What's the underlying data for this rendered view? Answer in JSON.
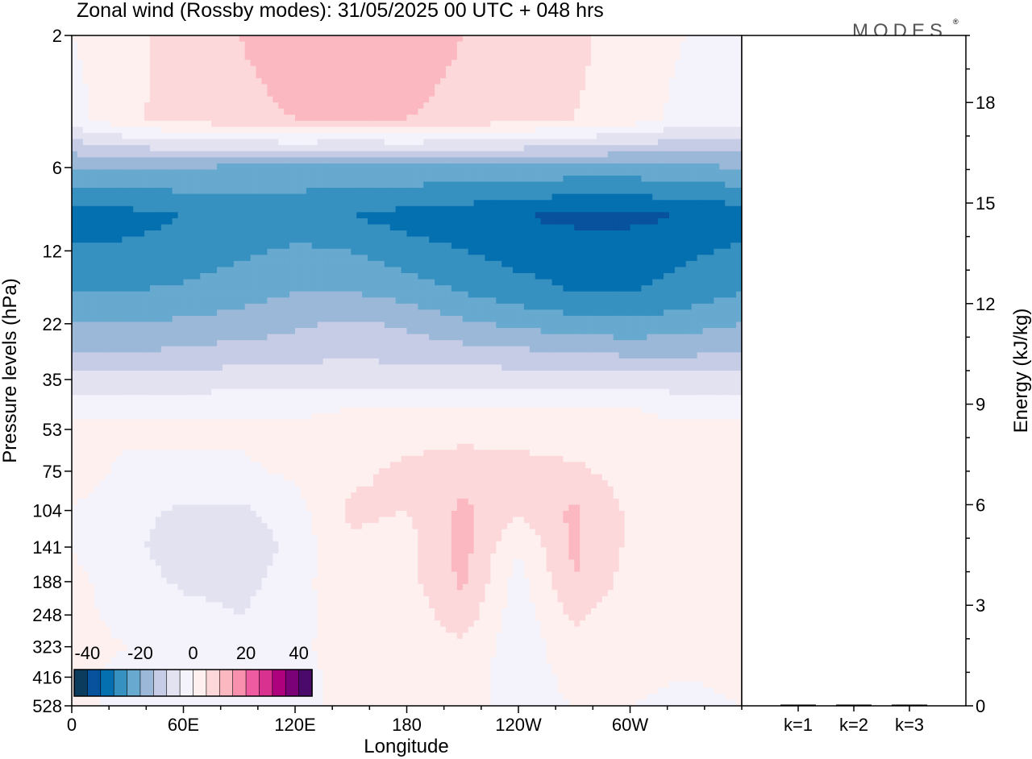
{
  "title": "Zonal wind (Rossby modes):  31/05/2025  00 UTC  + 048 hrs",
  "logo": "MODES",
  "logo_mark": "®",
  "chart_data": [
    {
      "type": "heatmap",
      "title": "Zonal wind (Rossby modes):  31/05/2025  00 UTC  + 048 hrs",
      "xlabel": "Longitude",
      "ylabel": "Pressure levels (hPa)",
      "x_ticks": [
        "0",
        "60E",
        "120E",
        "180",
        "120W",
        "60W"
      ],
      "x_tick_degrees": [
        0,
        60,
        120,
        180,
        240,
        300
      ],
      "x_range_degrees": [
        0,
        360
      ],
      "y_scale": "log",
      "y_ticks": [
        2,
        6,
        12,
        22,
        35,
        53,
        75,
        104,
        141,
        188,
        248,
        323,
        416,
        528
      ],
      "y_range": [
        2,
        528
      ],
      "colorbar": {
        "labels": [
          "-40",
          "-20",
          "0",
          "20",
          "40"
        ],
        "label_values": [
          -40,
          -20,
          0,
          20,
          40
        ],
        "range": [
          -45,
          45
        ],
        "step": 5,
        "colors": [
          "#0b3c5d",
          "#08519c",
          "#0570b0",
          "#3690c0",
          "#67a9cf",
          "#9bb8d8",
          "#c6cce6",
          "#e2e2f0",
          "#f4f2fa",
          "#fdf0ee",
          "#fcd8da",
          "#fbb8c0",
          "#f990ad",
          "#ef5ba0",
          "#d9318f",
          "#ae017e",
          "#7a0177",
          "#4a0a6b"
        ]
      },
      "field_description_note": "",
      "wind_field_rows": [
        {
          "p": 2,
          "u": [
            0,
            3,
            8,
            10,
            12,
            13,
            12,
            10,
            8,
            6,
            3,
            0,
            0
          ]
        },
        {
          "p": 4,
          "u": [
            -2,
            4,
            7,
            9,
            10,
            10,
            10,
            9,
            7,
            5,
            3,
            -2,
            -2
          ]
        },
        {
          "p": 6,
          "u": [
            -20,
            -20,
            -20,
            -21,
            -21,
            -22,
            -21,
            -21,
            -21,
            -22,
            -22,
            -21,
            -20
          ]
        },
        {
          "p": 9,
          "u": [
            -33,
            -32,
            -30,
            -29,
            -29,
            -30,
            -32,
            -33,
            -35,
            -36,
            -36,
            -35,
            -33
          ]
        },
        {
          "p": 12,
          "u": [
            -29,
            -29,
            -28,
            -26,
            -24,
            -25,
            -28,
            -30,
            -32,
            -33,
            -33,
            -31,
            -29
          ]
        },
        {
          "p": 17,
          "u": [
            -25,
            -25,
            -24,
            -22,
            -20,
            -20,
            -22,
            -25,
            -28,
            -30,
            -30,
            -28,
            -25
          ]
        },
        {
          "p": 22,
          "u": [
            -20,
            -20,
            -19,
            -18,
            -16,
            -14,
            -16,
            -19,
            -21,
            -23,
            -24,
            -22,
            -20
          ]
        },
        {
          "p": 28,
          "u": [
            -15,
            -15,
            -14,
            -13,
            -12,
            -11,
            -12,
            -13,
            -14,
            -15,
            -16,
            -16,
            -15
          ]
        },
        {
          "p": 35,
          "u": [
            -8,
            -8,
            -8,
            -7,
            -7,
            -7,
            -7,
            -7,
            -7,
            -8,
            -8,
            -8,
            -8
          ]
        },
        {
          "p": 44,
          "u": [
            -2,
            -2,
            -2,
            -2,
            -2,
            0,
            0,
            0,
            0,
            0,
            0,
            -2,
            -2
          ]
        },
        {
          "p": 53,
          "u": [
            1,
            1,
            1,
            1,
            2,
            2,
            3,
            3,
            3,
            2,
            2,
            1,
            1
          ]
        },
        {
          "p": 75,
          "u": [
            2,
            -1,
            -1,
            -1,
            1,
            4,
            6,
            8,
            7,
            6,
            3,
            0,
            2
          ]
        },
        {
          "p": 104,
          "u": [
            0,
            -3,
            -6,
            -6,
            -2,
            6,
            5,
            11,
            6,
            11,
            4,
            1,
            0
          ]
        },
        {
          "p": 141,
          "u": [
            0,
            -3,
            -9,
            -10,
            -3,
            4,
            3,
            12,
            0,
            11,
            4,
            1,
            0
          ]
        },
        {
          "p": 188,
          "u": [
            1,
            -2,
            -6,
            -7,
            -2,
            4,
            3,
            11,
            -2,
            10,
            3,
            0,
            1
          ]
        },
        {
          "p": 248,
          "u": [
            1,
            -1,
            -3,
            -5,
            -2,
            3,
            2,
            8,
            -3,
            6,
            2,
            0,
            1
          ]
        },
        {
          "p": 323,
          "u": [
            1,
            0,
            -2,
            -4,
            -1,
            2,
            2,
            4,
            -3,
            3,
            2,
            0,
            1
          ]
        },
        {
          "p": 416,
          "u": [
            1,
            -1,
            -1,
            -2,
            -1,
            1,
            1,
            2,
            -2,
            1,
            1,
            0,
            1
          ]
        },
        {
          "p": 528,
          "u": [
            0,
            0,
            0,
            -1,
            0,
            0,
            1,
            1,
            -1,
            0,
            0,
            -1,
            0
          ]
        }
      ],
      "wind_field_longitudes": [
        0,
        30,
        60,
        90,
        120,
        150,
        180,
        210,
        240,
        270,
        300,
        330,
        360
      ]
    },
    {
      "type": "bar",
      "categories": [
        "k=1",
        "k=2",
        "k=3"
      ],
      "values": [
        0.02,
        0.01,
        0.01
      ],
      "ylabel": "Energy (kJ/kg)",
      "y_ticks": [
        0,
        3,
        6,
        9,
        12,
        15,
        18
      ],
      "ylim": [
        0,
        20
      ],
      "bar_color": "#000000"
    }
  ]
}
